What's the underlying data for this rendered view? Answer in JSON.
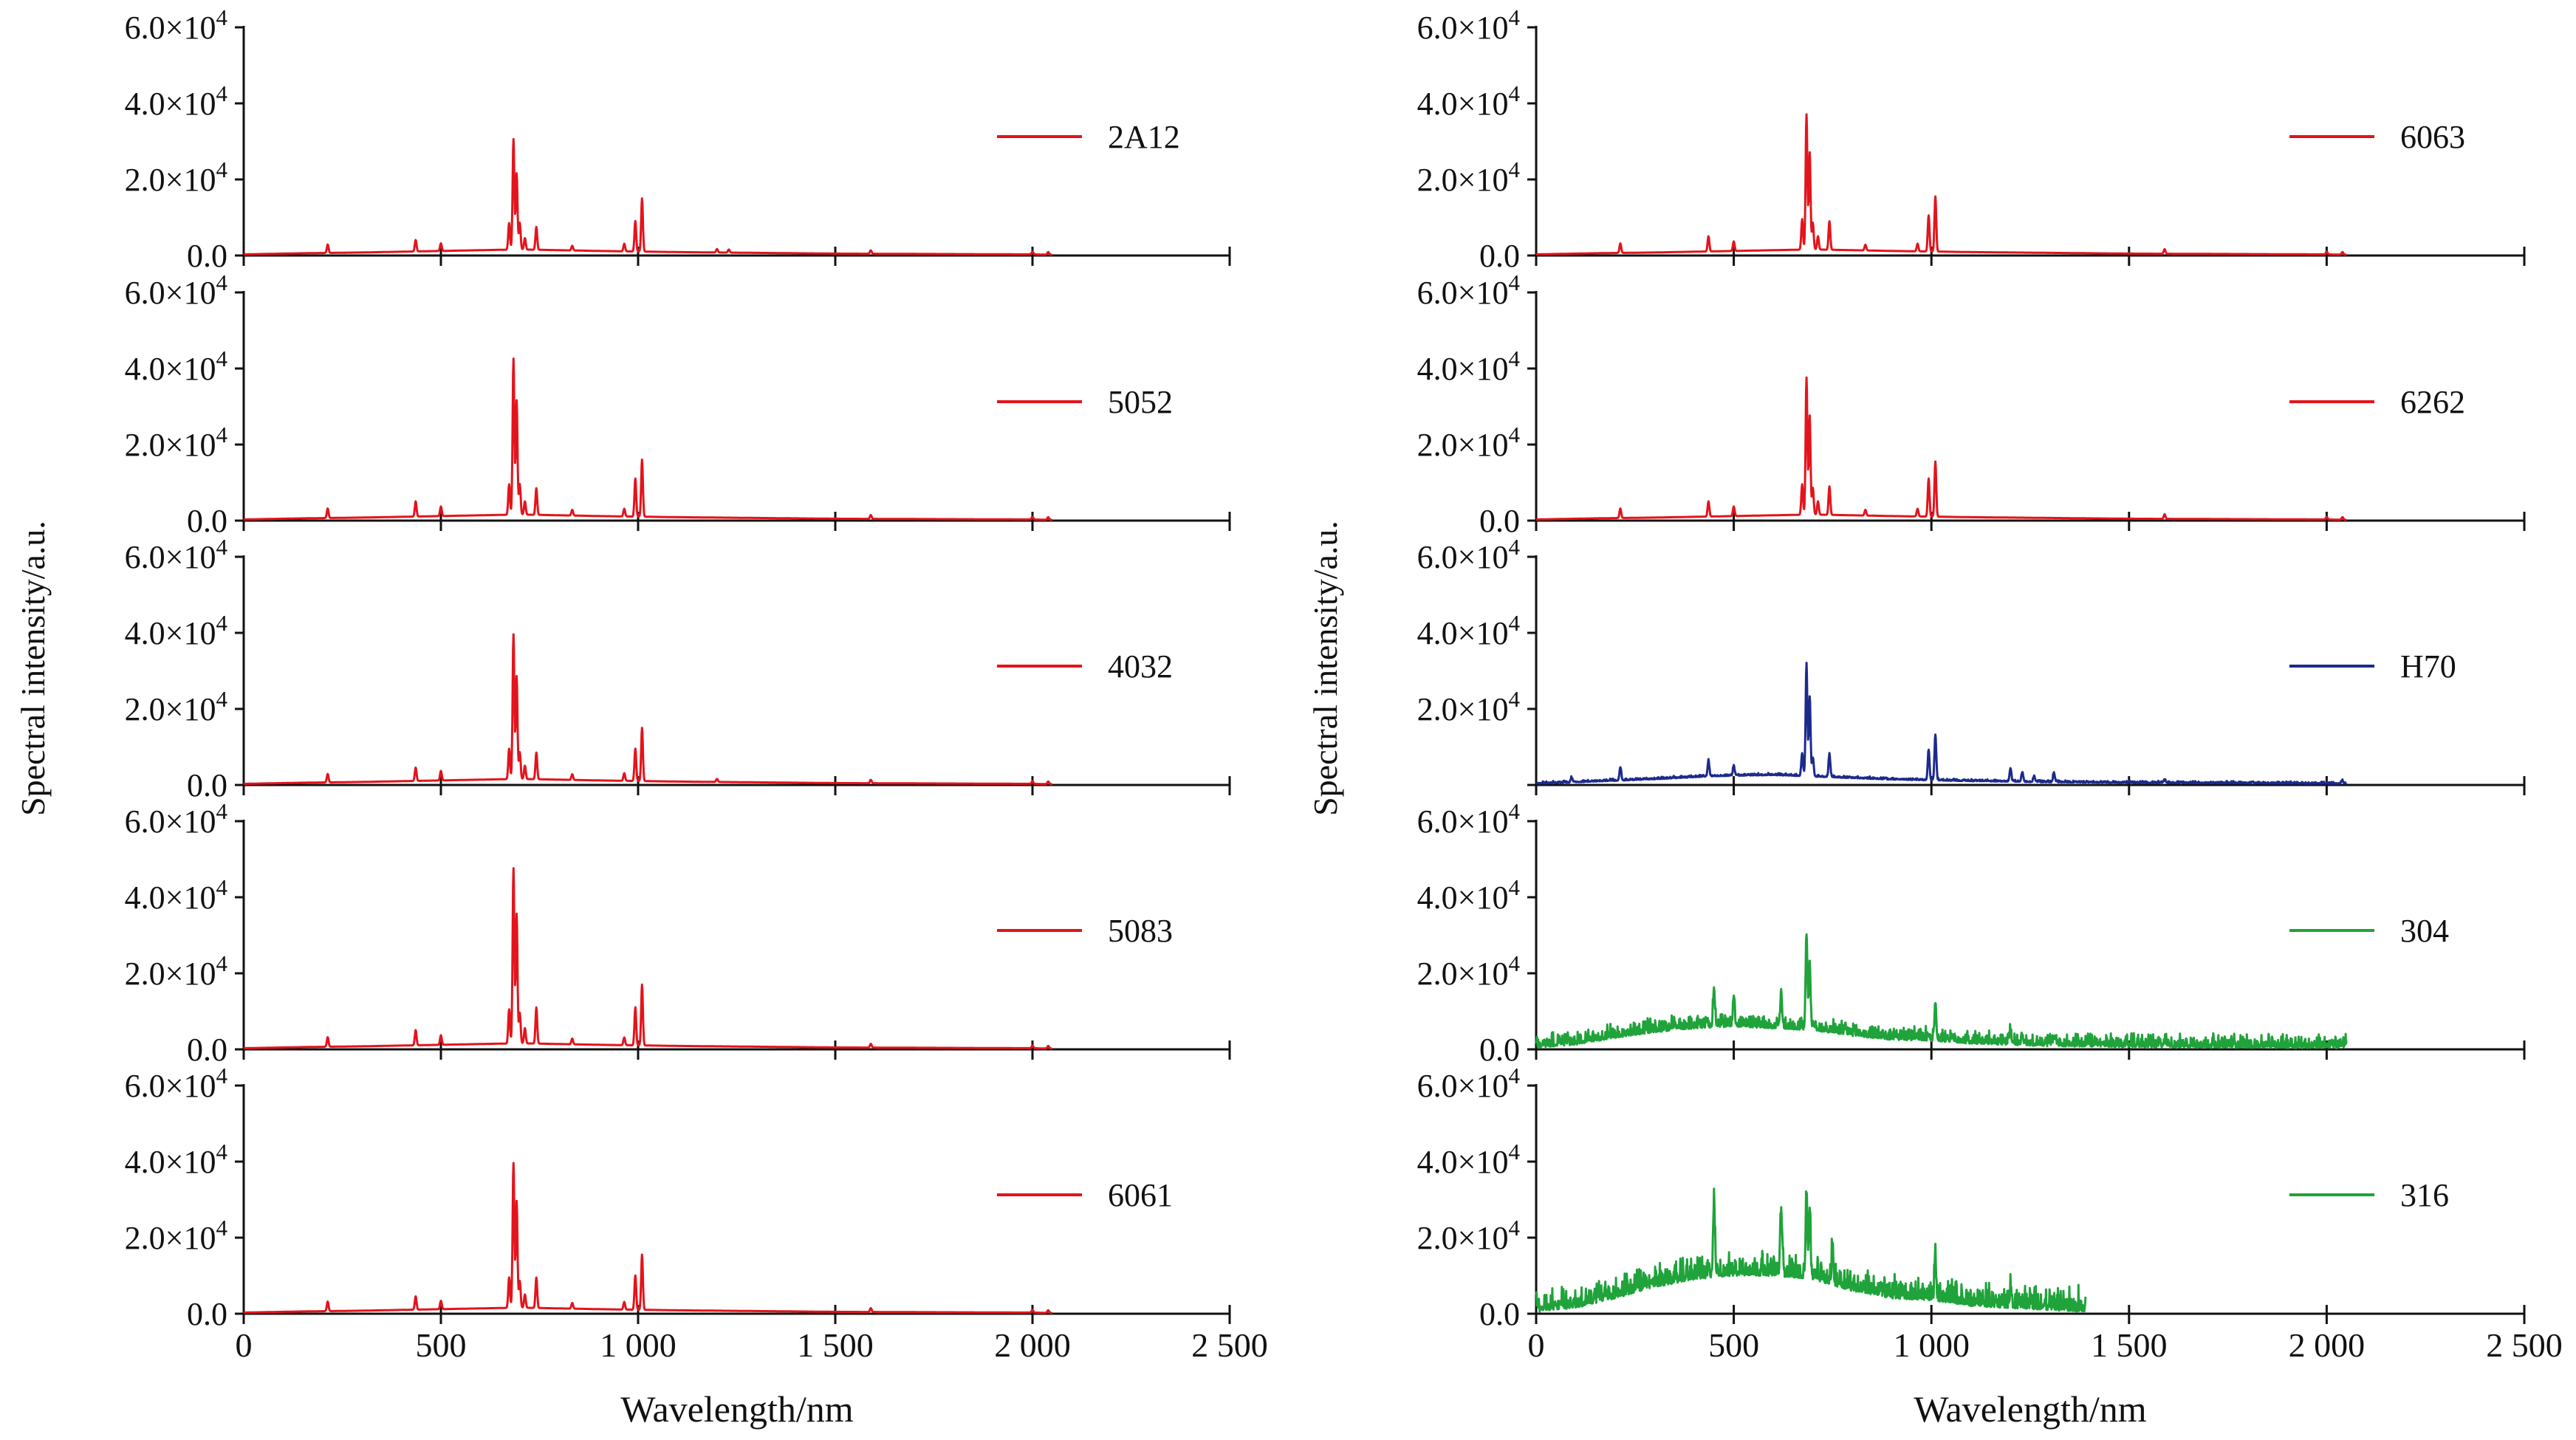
{
  "figure": {
    "ylabel": "Spectral intensity/a.u.",
    "xlabel": "Wavelength/nm",
    "xticks": [
      "0",
      "500",
      "1 000",
      "1 500",
      "2 000",
      "2 500"
    ],
    "ytick_mantissas": [
      "0.0",
      "2.0",
      "4.0",
      "6.0"
    ],
    "ytick_exp_base": "×10",
    "ytick_exponent": "4"
  },
  "chart_data": [
    {
      "type": "line",
      "column": "left",
      "row": 0,
      "name": "2A12",
      "color": "#e3141c",
      "xlabel": "",
      "ylabel": "Spectral intensity/a.u.",
      "xlim": [
        0,
        2500
      ],
      "ylim": [
        0,
        60000
      ],
      "spectrum": {
        "baseline": [
          [
            0,
            300
          ],
          [
            150,
            600
          ],
          [
            300,
            800
          ],
          [
            500,
            1200
          ],
          [
            700,
            1600
          ],
          [
            900,
            1200
          ],
          [
            1100,
            900
          ],
          [
            1500,
            500
          ],
          [
            2000,
            300
          ],
          [
            2050,
            200
          ]
        ],
        "peaks": [
          [
            213,
            2200
          ],
          [
            436,
            3000
          ],
          [
            500,
            2000
          ],
          [
            673,
            7000
          ],
          [
            684,
            29000
          ],
          [
            692,
            20000
          ],
          [
            700,
            7000
          ],
          [
            713,
            3000
          ],
          [
            742,
            6000
          ],
          [
            833,
            1200
          ],
          [
            965,
            2000
          ],
          [
            993,
            8000
          ],
          [
            1010,
            14000
          ],
          [
            1200,
            900
          ],
          [
            1230,
            800
          ],
          [
            1590,
            900
          ],
          [
            2000,
            700
          ],
          [
            2040,
            700
          ]
        ],
        "noise": 0
      }
    },
    {
      "type": "line",
      "column": "left",
      "row": 1,
      "name": "5052",
      "color": "#e3141c",
      "xlabel": "",
      "ylabel": "Spectral intensity/a.u.",
      "xlim": [
        0,
        2500
      ],
      "ylim": [
        0,
        60000
      ],
      "spectrum": {
        "baseline": [
          [
            0,
            300
          ],
          [
            150,
            600
          ],
          [
            300,
            800
          ],
          [
            500,
            1200
          ],
          [
            700,
            1600
          ],
          [
            900,
            1200
          ],
          [
            1100,
            900
          ],
          [
            1500,
            500
          ],
          [
            2000,
            300
          ],
          [
            2050,
            200
          ]
        ],
        "peaks": [
          [
            213,
            2500
          ],
          [
            436,
            4000
          ],
          [
            500,
            2500
          ],
          [
            673,
            8000
          ],
          [
            684,
            41000
          ],
          [
            692,
            30000
          ],
          [
            700,
            8000
          ],
          [
            713,
            3500
          ],
          [
            742,
            7000
          ],
          [
            833,
            1500
          ],
          [
            965,
            2000
          ],
          [
            993,
            10000
          ],
          [
            1010,
            15000
          ],
          [
            1590,
            1000
          ],
          [
            2000,
            700
          ],
          [
            2040,
            700
          ]
        ],
        "noise": 0
      }
    },
    {
      "type": "line",
      "column": "left",
      "row": 2,
      "name": "4032",
      "color": "#e3141c",
      "xlabel": "",
      "ylabel": "Spectral intensity/a.u.",
      "xlim": [
        0,
        2500
      ],
      "ylim": [
        0,
        60000
      ],
      "spectrum": {
        "baseline": [
          [
            0,
            300
          ],
          [
            150,
            600
          ],
          [
            300,
            800
          ],
          [
            500,
            1200
          ],
          [
            700,
            1600
          ],
          [
            900,
            1200
          ],
          [
            1100,
            900
          ],
          [
            1500,
            500
          ],
          [
            2000,
            300
          ],
          [
            2050,
            200
          ]
        ],
        "peaks": [
          [
            213,
            2200
          ],
          [
            436,
            3500
          ],
          [
            500,
            2500
          ],
          [
            673,
            8000
          ],
          [
            684,
            38000
          ],
          [
            692,
            27000
          ],
          [
            700,
            7000
          ],
          [
            713,
            3500
          ],
          [
            742,
            7000
          ],
          [
            833,
            1500
          ],
          [
            965,
            2000
          ],
          [
            993,
            8500
          ],
          [
            1010,
            14000
          ],
          [
            1200,
            800
          ],
          [
            1590,
            900
          ],
          [
            2000,
            700
          ],
          [
            2040,
            700
          ]
        ],
        "noise": 0
      }
    },
    {
      "type": "line",
      "column": "left",
      "row": 3,
      "name": "5083",
      "color": "#e3141c",
      "xlabel": "",
      "ylabel": "Spectral intensity/a.u.",
      "xlim": [
        0,
        2500
      ],
      "ylim": [
        0,
        60000
      ],
      "spectrum": {
        "baseline": [
          [
            0,
            300
          ],
          [
            150,
            600
          ],
          [
            300,
            800
          ],
          [
            500,
            1200
          ],
          [
            700,
            1600
          ],
          [
            900,
            1200
          ],
          [
            1100,
            900
          ],
          [
            1500,
            500
          ],
          [
            2000,
            300
          ],
          [
            2050,
            200
          ]
        ],
        "peaks": [
          [
            213,
            2500
          ],
          [
            436,
            4000
          ],
          [
            500,
            2500
          ],
          [
            673,
            9000
          ],
          [
            684,
            46000
          ],
          [
            692,
            34000
          ],
          [
            700,
            8000
          ],
          [
            713,
            4000
          ],
          [
            742,
            9500
          ],
          [
            833,
            1500
          ],
          [
            965,
            2000
          ],
          [
            993,
            10000
          ],
          [
            1010,
            16000
          ],
          [
            1590,
            1000
          ],
          [
            2000,
            700
          ],
          [
            2040,
            700
          ]
        ],
        "noise": 0
      }
    },
    {
      "type": "line",
      "column": "left",
      "row": 4,
      "name": "6061",
      "color": "#e3141c",
      "xlabel": "Wavelength/nm",
      "ylabel": "Spectral intensity/a.u.",
      "xlim": [
        0,
        2500
      ],
      "ylim": [
        0,
        60000
      ],
      "spectrum": {
        "baseline": [
          [
            0,
            300
          ],
          [
            150,
            600
          ],
          [
            300,
            800
          ],
          [
            500,
            1200
          ],
          [
            700,
            1600
          ],
          [
            900,
            1200
          ],
          [
            1100,
            900
          ],
          [
            1500,
            500
          ],
          [
            2000,
            300
          ],
          [
            2050,
            200
          ]
        ],
        "peaks": [
          [
            213,
            2500
          ],
          [
            436,
            3500
          ],
          [
            500,
            2200
          ],
          [
            673,
            8000
          ],
          [
            684,
            38000
          ],
          [
            692,
            28000
          ],
          [
            700,
            7000
          ],
          [
            713,
            3500
          ],
          [
            742,
            8000
          ],
          [
            833,
            1500
          ],
          [
            965,
            2000
          ],
          [
            993,
            9000
          ],
          [
            1010,
            14500
          ],
          [
            1590,
            1000
          ],
          [
            2000,
            700
          ],
          [
            2040,
            700
          ]
        ],
        "noise": 0
      }
    },
    {
      "type": "line",
      "column": "right",
      "row": 0,
      "name": "6063",
      "color": "#e3141c",
      "xlabel": "",
      "ylabel": "Spectral intensity/a.u.",
      "xlim": [
        0,
        2500
      ],
      "ylim": [
        0,
        60000
      ],
      "spectrum": {
        "baseline": [
          [
            0,
            300
          ],
          [
            150,
            600
          ],
          [
            300,
            800
          ],
          [
            500,
            1200
          ],
          [
            700,
            1600
          ],
          [
            900,
            1200
          ],
          [
            1100,
            900
          ],
          [
            1500,
            500
          ],
          [
            2000,
            300
          ],
          [
            2050,
            200
          ]
        ],
        "peaks": [
          [
            213,
            2500
          ],
          [
            436,
            4000
          ],
          [
            500,
            2500
          ],
          [
            673,
            8000
          ],
          [
            684,
            35500
          ],
          [
            692,
            25500
          ],
          [
            700,
            7000
          ],
          [
            713,
            3500
          ],
          [
            742,
            7500
          ],
          [
            833,
            1500
          ],
          [
            965,
            2000
          ],
          [
            993,
            9500
          ],
          [
            1010,
            14500
          ],
          [
            1590,
            1200
          ],
          [
            2000,
            700
          ],
          [
            2040,
            700
          ]
        ],
        "noise": 0
      }
    },
    {
      "type": "line",
      "column": "right",
      "row": 1,
      "name": "6262",
      "color": "#e3141c",
      "xlabel": "",
      "ylabel": "Spectral intensity/a.u.",
      "xlim": [
        0,
        2500
      ],
      "ylim": [
        0,
        60000
      ],
      "spectrum": {
        "baseline": [
          [
            0,
            300
          ],
          [
            150,
            600
          ],
          [
            300,
            800
          ],
          [
            500,
            1200
          ],
          [
            700,
            1600
          ],
          [
            900,
            1200
          ],
          [
            1100,
            900
          ],
          [
            1500,
            500
          ],
          [
            2000,
            300
          ],
          [
            2050,
            200
          ]
        ],
        "peaks": [
          [
            213,
            2500
          ],
          [
            436,
            4000
          ],
          [
            500,
            2500
          ],
          [
            673,
            8000
          ],
          [
            684,
            36000
          ],
          [
            692,
            26000
          ],
          [
            700,
            7000
          ],
          [
            713,
            3500
          ],
          [
            742,
            7500
          ],
          [
            833,
            1500
          ],
          [
            965,
            2000
          ],
          [
            993,
            10000
          ],
          [
            1010,
            14500
          ],
          [
            1590,
            1200
          ],
          [
            2000,
            700
          ],
          [
            2040,
            700
          ]
        ],
        "noise": 0
      }
    },
    {
      "type": "line",
      "column": "right",
      "row": 2,
      "name": "H70",
      "color": "#1d2a8c",
      "xlabel": "",
      "ylabel": "Spectral intensity/a.u.",
      "xlim": [
        0,
        2500
      ],
      "ylim": [
        0,
        60000
      ],
      "spectrum": {
        "baseline": [
          [
            0,
            300
          ],
          [
            150,
            900
          ],
          [
            300,
            1500
          ],
          [
            450,
            2300
          ],
          [
            600,
            2600
          ],
          [
            700,
            2200
          ],
          [
            900,
            1400
          ],
          [
            1100,
            1000
          ],
          [
            1300,
            700
          ],
          [
            1600,
            500
          ],
          [
            2050,
            300
          ]
        ],
        "peaks": [
          [
            90,
            1200
          ],
          [
            213,
            3500
          ],
          [
            436,
            4000
          ],
          [
            500,
            2500
          ],
          [
            673,
            6000
          ],
          [
            684,
            29500
          ],
          [
            692,
            21000
          ],
          [
            700,
            5000
          ],
          [
            742,
            6000
          ],
          [
            993,
            8000
          ],
          [
            1010,
            12000
          ],
          [
            1200,
            3500
          ],
          [
            1230,
            2500
          ],
          [
            1260,
            1500
          ],
          [
            1310,
            2500
          ],
          [
            1590,
            900
          ],
          [
            2040,
            700
          ]
        ],
        "noise": 500
      }
    },
    {
      "type": "line",
      "column": "right",
      "row": 3,
      "name": "304",
      "color": "#1fa33a",
      "xlabel": "",
      "ylabel": "Spectral intensity/a.u.",
      "xlim": [
        0,
        2500
      ],
      "ylim": [
        0,
        60000
      ],
      "spectrum": {
        "baseline": [
          [
            0,
            400
          ],
          [
            100,
            1200
          ],
          [
            200,
            3000
          ],
          [
            300,
            4500
          ],
          [
            400,
            5500
          ],
          [
            500,
            6000
          ],
          [
            600,
            5500
          ],
          [
            700,
            5000
          ],
          [
            800,
            3500
          ],
          [
            900,
            2500
          ],
          [
            1000,
            2200
          ],
          [
            1100,
            1500
          ],
          [
            1300,
            800
          ],
          [
            1600,
            500
          ],
          [
            2050,
            300
          ]
        ],
        "peaks": [
          [
            450,
            10000
          ],
          [
            500,
            8000
          ],
          [
            620,
            9500
          ],
          [
            684,
            25000
          ],
          [
            692,
            18000
          ],
          [
            1010,
            10000
          ],
          [
            1200,
            3500
          ],
          [
            1230,
            2500
          ],
          [
            1310,
            2000
          ],
          [
            1590,
            1000
          ],
          [
            2040,
            700
          ]
        ],
        "noise": 3200
      }
    },
    {
      "type": "line",
      "column": "right",
      "row": 4,
      "name": "316",
      "color": "#1fa33a",
      "xlabel": "Wavelength/nm",
      "ylabel": "Spectral intensity/a.u.",
      "xlim": [
        0,
        2500
      ],
      "ylim": [
        0,
        60000
      ],
      "spectrum": {
        "baseline": [
          [
            0,
            500
          ],
          [
            100,
            1500
          ],
          [
            200,
            4000
          ],
          [
            300,
            7000
          ],
          [
            400,
            9000
          ],
          [
            500,
            10000
          ],
          [
            600,
            10000
          ],
          [
            700,
            9000
          ],
          [
            800,
            6000
          ],
          [
            900,
            4000
          ],
          [
            1000,
            3500
          ],
          [
            1100,
            2000
          ],
          [
            1250,
            1200
          ],
          [
            1390,
            500
          ]
        ],
        "peaks": [
          [
            450,
            19000
          ],
          [
            620,
            17000
          ],
          [
            684,
            22000
          ],
          [
            692,
            17000
          ],
          [
            750,
            9000
          ],
          [
            1010,
            9500
          ],
          [
            1200,
            3000
          ]
        ],
        "noise": 5500
      }
    }
  ]
}
